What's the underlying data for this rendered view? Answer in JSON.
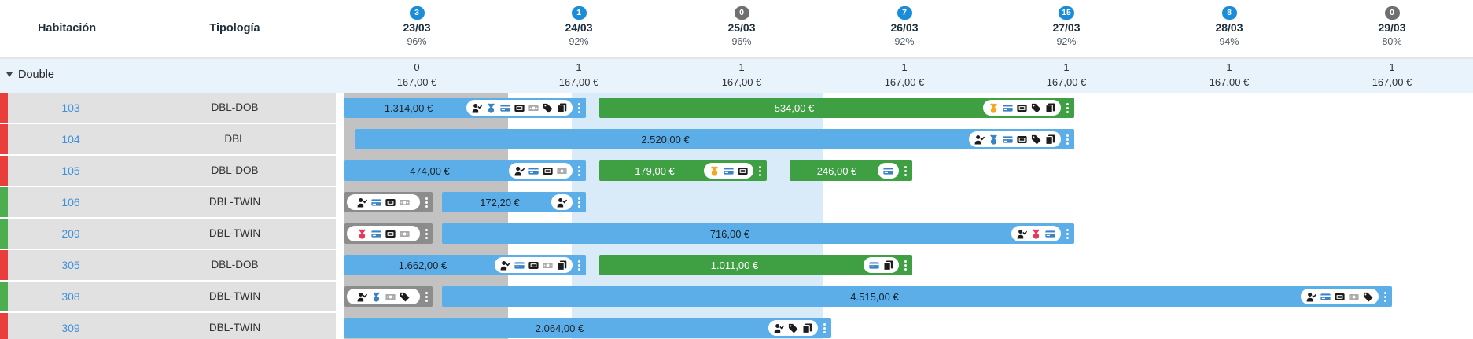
{
  "columns": {
    "room": "Habitación",
    "type": "Tipología"
  },
  "days": [
    {
      "badge": "3",
      "badge_style": "blue",
      "date": "23/03",
      "occupancy": "96%",
      "available": "0",
      "price": "167,00 €"
    },
    {
      "badge": "1",
      "badge_style": "blue",
      "date": "24/03",
      "occupancy": "92%",
      "available": "1",
      "price": "167,00 €"
    },
    {
      "badge": "0",
      "badge_style": "gray",
      "date": "25/03",
      "occupancy": "96%",
      "available": "1",
      "price": "167,00 €"
    },
    {
      "badge": "7",
      "badge_style": "blue",
      "date": "26/03",
      "occupancy": "92%",
      "available": "1",
      "price": "167,00 €"
    },
    {
      "badge": "15",
      "badge_style": "blue",
      "date": "27/03",
      "occupancy": "92%",
      "available": "1",
      "price": "167,00 €"
    },
    {
      "badge": "8",
      "badge_style": "blue",
      "date": "28/03",
      "occupancy": "94%",
      "available": "1",
      "price": "167,00 €"
    },
    {
      "badge": "0",
      "badge_style": "gray",
      "date": "29/03",
      "occupancy": "80%",
      "available": "1",
      "price": "167,00 €"
    }
  ],
  "group": {
    "label": "Double"
  },
  "rows": [
    {
      "room": "103",
      "type": "DBL-DOB",
      "status": "red",
      "bars": [
        {
          "color": "blue",
          "price": "1.314,00 €",
          "icons": [
            "person-check:dark",
            "medal:blue",
            "card:blue",
            "terminal:dark",
            "cash:gray",
            "tag:dark",
            "copy:dark"
          ]
        },
        {
          "color": "green",
          "price": "534,00 €",
          "icons": [
            "medal:orange",
            "card:blue",
            "terminal:dark",
            "tag:dark",
            "copy:dark"
          ]
        }
      ]
    },
    {
      "room": "104",
      "type": "DBL",
      "status": "red",
      "bars": [
        {
          "color": "blue",
          "price": "2.520,00 €",
          "icons": [
            "person-check:dark",
            "medal:blue",
            "card:blue",
            "terminal:dark",
            "tag:dark",
            "copy:dark"
          ]
        }
      ]
    },
    {
      "room": "105",
      "type": "DBL-DOB",
      "status": "red",
      "bars": [
        {
          "color": "blue",
          "price": "474,00 €",
          "icons": [
            "person-check:dark",
            "card:blue",
            "terminal:dark",
            "cash:gray"
          ]
        },
        {
          "color": "green",
          "price": "179,00 €",
          "icons": [
            "medal:orange",
            "card:blue",
            "terminal:dark"
          ]
        },
        {
          "color": "green",
          "price": "246,00 €",
          "icons": [
            "card:blue"
          ]
        }
      ]
    },
    {
      "room": "106",
      "type": "DBL-TWIN",
      "status": "green",
      "bars": [
        {
          "color": "gray",
          "price": "",
          "icons": [
            "person-check:dark",
            "card:blue",
            "terminal:dark",
            "cash:gray"
          ]
        },
        {
          "color": "blue",
          "price": "172,20 €",
          "icons": [
            "person-check:dark"
          ]
        }
      ]
    },
    {
      "room": "209",
      "type": "DBL-TWIN",
      "status": "green",
      "bars": [
        {
          "color": "gray",
          "price": "",
          "icons": [
            "medal:pink",
            "card:blue",
            "terminal:dark",
            "cash:gray"
          ]
        },
        {
          "color": "blue",
          "price": "716,00 €",
          "icons": [
            "person-check:dark",
            "medal:pink",
            "card:blue"
          ]
        }
      ]
    },
    {
      "room": "305",
      "type": "DBL-DOB",
      "status": "red",
      "bars": [
        {
          "color": "blue",
          "price": "1.662,00 €",
          "icons": [
            "person-check:dark",
            "card:blue",
            "terminal:dark",
            "cash:gray",
            "copy:dark"
          ]
        },
        {
          "color": "green",
          "price": "1.011,00 €",
          "icons": [
            "card:blue",
            "copy:dark"
          ]
        }
      ]
    },
    {
      "room": "308",
      "type": "DBL-TWIN",
      "status": "green",
      "bars": [
        {
          "color": "gray",
          "price": "",
          "icons": [
            "person-check:dark",
            "medal:blue",
            "cash:gray",
            "tag:dark"
          ]
        },
        {
          "color": "blue",
          "price": "4.515,00 €",
          "icons": [
            "person-check:dark",
            "card:blue",
            "terminal:dark",
            "cash:gray",
            "tag:dark"
          ]
        }
      ]
    },
    {
      "room": "309",
      "type": "DBL-TWIN",
      "status": "red",
      "bars": [
        {
          "color": "blue",
          "price": "2.064,00 €",
          "icons": [
            "person-check:dark",
            "tag:dark",
            "copy:dark"
          ]
        }
      ]
    }
  ],
  "colors": {
    "bar_blue": "#5caee8",
    "bar_green": "#3f9f43",
    "bar_gray": "#8c8c8c",
    "strip_red": "#ea3e3c",
    "strip_green": "#4cae4f",
    "badge_blue": "#1a8cd8",
    "badge_gray": "#6f6f6f",
    "group_row_bg": "#e9f3fb",
    "selected_band": "#d9eaf8",
    "past_days": "#c2c2c2",
    "room_link": "#4191d9"
  }
}
